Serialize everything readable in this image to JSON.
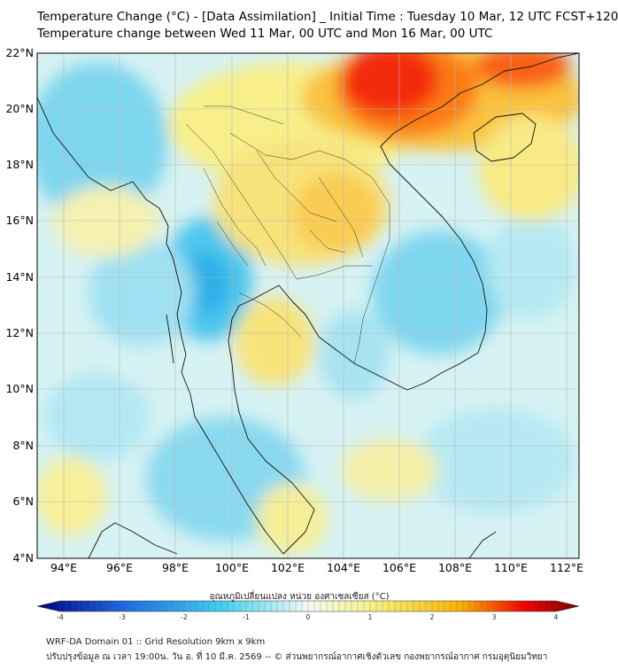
{
  "header": {
    "title_line1": "Temperature Change (°C) - [Data Assimilation] _ Initial Time : Tuesday 10 Mar, 12 UTC FCST+120",
    "title_line2": "Temperature change between Wed 11 Mar, 00 UTC and Mon 16 Mar, 00 UTC"
  },
  "map": {
    "lat_labels": [
      "22°N",
      "20°N",
      "18°N",
      "16°N",
      "14°N",
      "12°N",
      "10°N",
      "8°N",
      "6°N",
      "4°N"
    ],
    "lon_labels": [
      "94°E",
      "96°E",
      "98°E",
      "100°E",
      "102°E",
      "104°E",
      "106°E",
      "108°E",
      "110°E",
      "112°E"
    ]
  },
  "colorbar": {
    "title": "อุณหภูมิเปลี่ยนแปลง หน่วย องศาเซลเซียส (°C)",
    "ticks": [
      "-4",
      "-3",
      "-2",
      "-1",
      "0",
      "1",
      "2",
      "3",
      "4"
    ],
    "colors": {
      "neg_max": "#000080",
      "neg_mid": "#1e6fe6",
      "neg_low": "#40d0f0",
      "zero": "#f4fbf6",
      "pos_low": "#f6f07a",
      "pos_mid": "#fab400",
      "pos_high": "#f20000",
      "pos_max": "#780000"
    }
  },
  "footer": {
    "line1": "WRF-DA Domain 01 :: Grid Resolution 9km x 9km",
    "line2": "ปรับปรุงข้อมูล ณ เวลา 19:00น. วัน อ. ที่ 10 มี.ค. 2569 -- © ส่วนพยากรณ์อากาศเชิงตัวเลข กองพยากรณ์อากาศ กรมอุตุนิยมวิทยา"
  }
}
